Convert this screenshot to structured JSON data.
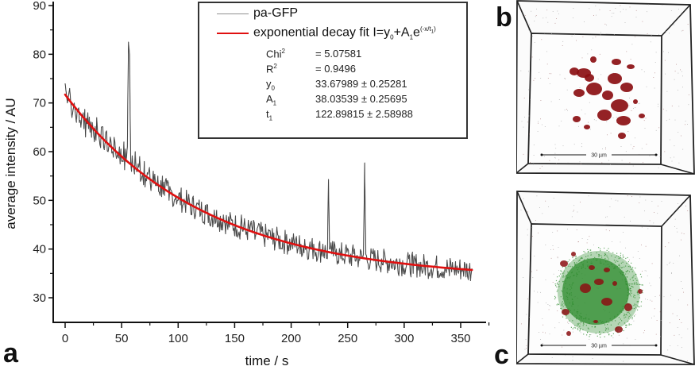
{
  "panels": {
    "a": "a",
    "b": "b",
    "c": "c"
  },
  "chart_data": {
    "type": "line",
    "title": "",
    "xlabel": "time / s",
    "ylabel": "average intensity / AU",
    "xlim": [
      -7,
      370
    ],
    "ylim": [
      25,
      90
    ],
    "xticks": [
      0,
      50,
      100,
      150,
      200,
      250,
      300,
      350
    ],
    "yticks": [
      30,
      40,
      50,
      60,
      70,
      80,
      90
    ],
    "grid": false,
    "legend_position": "top-right",
    "legend": [
      {
        "name": "pa-GFP",
        "color": "#808080"
      },
      {
        "name": "exponential decay fit I=y0+A1e^(-x/t1)",
        "color": "#e01010"
      }
    ],
    "fit": {
      "model": "I = y0 + A1 * exp(-x / t1)",
      "Chi2": "5.07581",
      "R2": "0.9496",
      "y0": 33.67989,
      "y0_err": 0.25281,
      "A1": 38.03539,
      "A1_err": 0.25695,
      "t1": 122.89815,
      "t1_err": 2.58988,
      "x_range": [
        0,
        360
      ]
    },
    "series": [
      {
        "name": "pa-GFP",
        "color": "#808080",
        "x": [
          0,
          2,
          4,
          6,
          8,
          10,
          12,
          14,
          16,
          18,
          20,
          22,
          24,
          26,
          28,
          30,
          32,
          34,
          36,
          38,
          40,
          42,
          44,
          46,
          48,
          50,
          52,
          54,
          55,
          56,
          57,
          58,
          60,
          62,
          64,
          66,
          68,
          70,
          72,
          74,
          76,
          78,
          80,
          82,
          84,
          86,
          88,
          90,
          92,
          94,
          96,
          98,
          100,
          104,
          108,
          112,
          116,
          120,
          124,
          128,
          132,
          136,
          140,
          144,
          148,
          152,
          156,
          160,
          164,
          168,
          172,
          176,
          180,
          184,
          188,
          192,
          196,
          200,
          204,
          208,
          212,
          216,
          220,
          224,
          228,
          232,
          233,
          234,
          236,
          240,
          244,
          248,
          252,
          256,
          260,
          264,
          265,
          266,
          268,
          272,
          276,
          280,
          284,
          288,
          292,
          296,
          300,
          304,
          308,
          312,
          316,
          320,
          324,
          328,
          332,
          336,
          340,
          344,
          348,
          352,
          356,
          360
        ],
        "values": [
          74,
          70,
          73,
          67,
          70,
          66,
          69,
          65,
          68,
          63,
          68,
          64,
          66,
          62,
          67,
          63,
          65,
          61,
          64,
          60,
          63,
          60,
          62,
          59,
          61,
          58,
          62,
          58,
          61,
          82.5,
          80,
          58,
          57,
          60,
          56,
          59,
          55,
          58,
          54,
          56,
          52,
          56,
          53,
          55,
          51,
          55,
          51,
          53,
          50,
          52,
          49,
          51,
          50,
          49,
          50,
          47,
          49,
          47,
          49,
          45,
          48,
          46,
          47,
          44,
          46,
          44,
          47,
          43,
          45,
          42,
          45,
          42,
          44,
          41,
          43,
          40,
          43,
          41,
          42,
          39,
          42,
          40,
          41,
          39,
          41,
          38,
          54.3,
          40,
          39,
          40,
          38,
          40,
          37,
          40,
          38,
          39,
          57.7,
          39,
          37,
          39,
          37,
          38,
          37,
          38,
          36,
          38,
          36,
          38,
          35,
          37,
          35,
          37,
          36,
          37,
          35,
          36,
          34.5,
          36,
          35,
          36,
          34.5,
          36
        ]
      },
      {
        "name": "exponential decay fit",
        "color": "#e01010",
        "x": [
          0,
          20,
          40,
          60,
          80,
          100,
          120,
          140,
          160,
          180,
          200,
          220,
          240,
          260,
          280,
          300,
          320,
          340,
          360
        ],
        "values": [
          71.72,
          66.09,
          61.29,
          57.2,
          53.7,
          50.73,
          48.19,
          46.03,
          44.18,
          42.61,
          41.26,
          40.12,
          39.14,
          38.3,
          37.59,
          36.98,
          36.46,
          36.02,
          35.71
        ]
      }
    ]
  },
  "legend_stats": [
    {
      "name": "Chi",
      "sup": "2",
      "sub": "",
      "value": "=  5.07581"
    },
    {
      "name": "R",
      "sup": "2",
      "sub": "",
      "value": "=  0.9496"
    },
    {
      "name": "y",
      "sup": "",
      "sub": "0",
      "value": "33.67989 ± 0.25281"
    },
    {
      "name": "A",
      "sup": "",
      "sub": "1",
      "value": "38.03539 ± 0.25695"
    },
    {
      "name": "t",
      "sup": "",
      "sub": "1",
      "value": "122.89815 ± 2.58988"
    }
  ],
  "legend_labels": {
    "trace": "pa-GFP",
    "fit_prefix": "exponential decay fit I=y",
    "fit_sub0": "0",
    "fit_plus": "+A",
    "fit_sub1": "1",
    "fit_e": "e",
    "fit_exp": "(-x/t",
    "fit_exp_sub": "1",
    "fit_exp_close": ")"
  },
  "images": {
    "b": {
      "scale_bar": "30 µm",
      "channels": [
        "red"
      ],
      "blob_color": "#8b0f12"
    },
    "c": {
      "scale_bar": "30 µm",
      "channels": [
        "green",
        "red"
      ],
      "blob_color": "#8b0f12",
      "cloud_color": "#2e8b2e"
    }
  }
}
